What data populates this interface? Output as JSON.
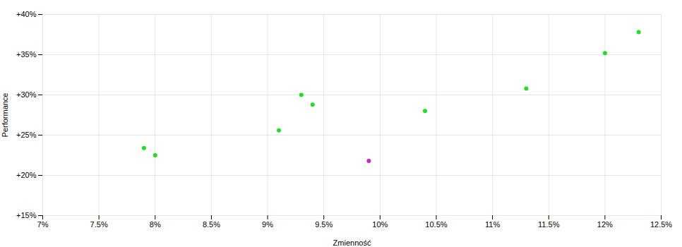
{
  "chart_data": {
    "type": "scatter",
    "xlabel": "Zmienność",
    "ylabel": "Performance",
    "xlim": [
      0.07,
      0.125
    ],
    "ylim": [
      0.15,
      0.4
    ],
    "xticks": [
      {
        "value": 0.07,
        "label": "7%"
      },
      {
        "value": 0.075,
        "label": "7.5%"
      },
      {
        "value": 0.08,
        "label": "8%"
      },
      {
        "value": 0.085,
        "label": "8.5%"
      },
      {
        "value": 0.09,
        "label": "9%"
      },
      {
        "value": 0.095,
        "label": "9.5%"
      },
      {
        "value": 0.1,
        "label": "10%"
      },
      {
        "value": 0.105,
        "label": "10.5%"
      },
      {
        "value": 0.11,
        "label": "11%"
      },
      {
        "value": 0.115,
        "label": "11.5%"
      },
      {
        "value": 0.12,
        "label": "12%"
      },
      {
        "value": 0.125,
        "label": "12.5%"
      }
    ],
    "yticks": [
      {
        "value": 0.15,
        "label": "+15%"
      },
      {
        "value": 0.2,
        "label": "+20%"
      },
      {
        "value": 0.25,
        "label": "+25%"
      },
      {
        "value": 0.3,
        "label": "+30%"
      },
      {
        "value": 0.35,
        "label": "+35%"
      },
      {
        "value": 0.4,
        "label": "+40%"
      }
    ],
    "grid": true,
    "series": [
      {
        "color": "#22dd22",
        "x": [
          0.079,
          0.08,
          0.091,
          0.093,
          0.094,
          0.104,
          0.113,
          0.12,
          0.123
        ],
        "values": [
          0.234,
          0.225,
          0.256,
          0.3,
          0.288,
          0.28,
          0.308,
          0.352,
          0.378
        ]
      },
      {
        "color": "#cc22cc",
        "x": [
          0.099
        ],
        "values": [
          0.218
        ]
      }
    ]
  }
}
